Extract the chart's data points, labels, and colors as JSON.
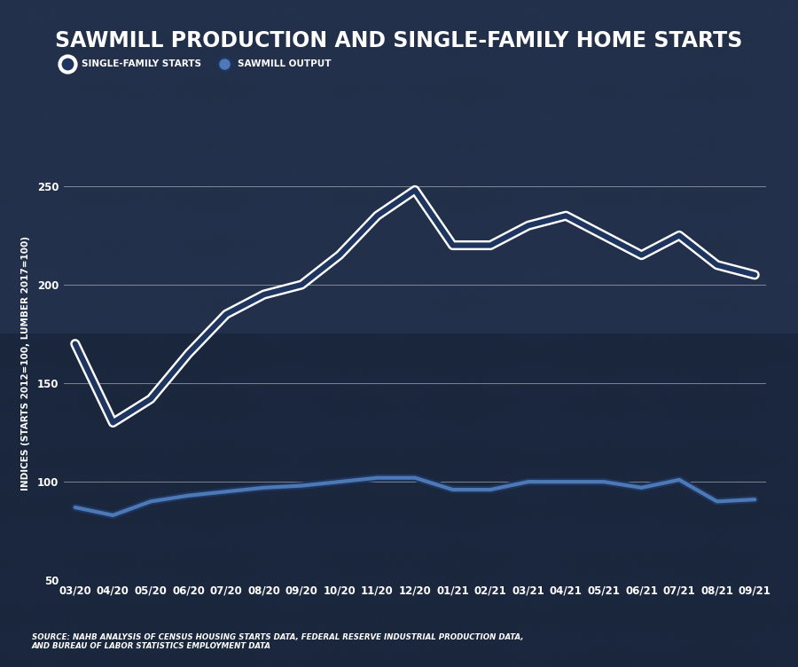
{
  "title": "SAWMILL PRODUCTION AND SINGLE-FAMILY HOME STARTS",
  "x_labels": [
    "03/20",
    "04/20",
    "05/20",
    "06/20",
    "07/20",
    "08/20",
    "09/20",
    "10/20",
    "11/20",
    "12/20",
    "01/21",
    "02/21",
    "03/21",
    "04/21",
    "05/21",
    "06/21",
    "07/21",
    "08/21",
    "09/21"
  ],
  "single_family": [
    170,
    130,
    142,
    165,
    185,
    195,
    200,
    215,
    235,
    248,
    220,
    220,
    230,
    235,
    225,
    215,
    225,
    210,
    205
  ],
  "sawmill": [
    87,
    83,
    90,
    93,
    95,
    97,
    98,
    100,
    102,
    102,
    96,
    96,
    100,
    100,
    100,
    97,
    101,
    90,
    91
  ],
  "ylim": [
    50,
    270
  ],
  "yticks": [
    50,
    100,
    150,
    200,
    250
  ],
  "bg_color": "#1c2b45",
  "bg_overlay_alpha": 0.72,
  "line1_fill": "#1e3560",
  "line1_outline": "#ffffff",
  "line2_fill": "#4d7ab5",
  "line2_outline": "#1e3560",
  "grid_color": "#ffffff",
  "text_color": "#ffffff",
  "ylabel": "INDICES (STARTS 2012=100, LUMBER 2017=100)",
  "source_text": "SOURCE: NAHB ANALYSIS OF CENSUS HOUSING STARTS DATA, FEDERAL RESERVE INDUSTRIAL PRODUCTION DATA,\nAND BUREAU OF LABOR STATISTICS EMPLOYMENT DATA",
  "legend1": "SINGLE-FAMILY STARTS",
  "legend2": "SAWMILL OUTPUT",
  "title_fontsize": 17,
  "label_fontsize": 7.5,
  "tick_fontsize": 8.5
}
